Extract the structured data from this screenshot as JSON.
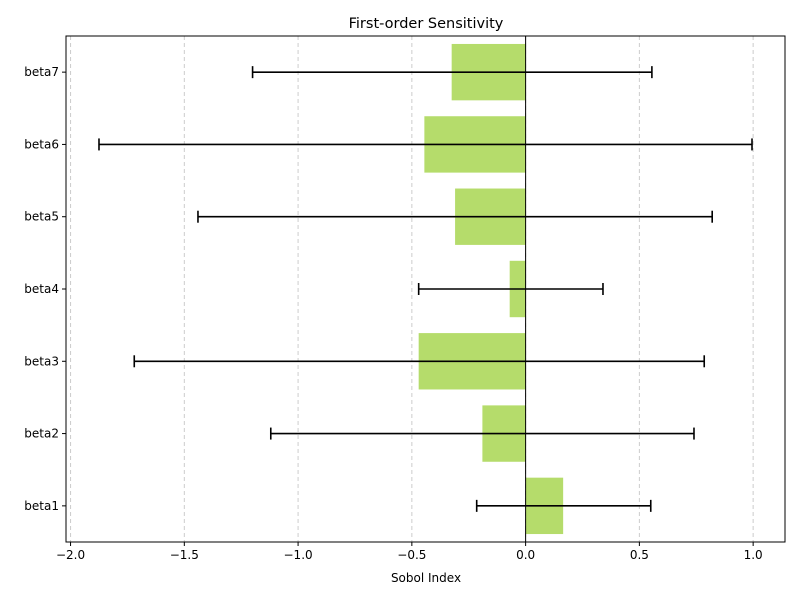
{
  "chart_data": {
    "type": "bar",
    "orientation": "horizontal",
    "title": "First-order Sensitivity",
    "xlabel": "Sobol Index",
    "ylabel": "",
    "categories": [
      "beta1",
      "beta2",
      "beta3",
      "beta4",
      "beta5",
      "beta6",
      "beta7"
    ],
    "values": [
      0.165,
      -0.19,
      -0.47,
      -0.07,
      -0.31,
      -0.445,
      -0.325
    ],
    "error_low": [
      -0.215,
      -1.12,
      -1.72,
      -0.47,
      -1.44,
      -1.875,
      -1.2
    ],
    "error_high": [
      0.55,
      0.74,
      0.785,
      0.34,
      0.82,
      0.995,
      0.555
    ],
    "xlim": [
      -2.02,
      1.14
    ],
    "xticks": [
      -2.0,
      -1.5,
      -1.0,
      -0.5,
      0.0,
      0.5,
      1.0
    ],
    "xtick_labels": [
      "−2.0",
      "−1.5",
      "−1.0",
      "−0.5",
      "0.0",
      "0.5",
      "1.0"
    ],
    "grid": "x-dashed",
    "zero_line": true,
    "colors": {
      "bar": "#b5dc6b",
      "error": "#000000",
      "grid": "#cccccc",
      "axis": "#000000"
    }
  }
}
